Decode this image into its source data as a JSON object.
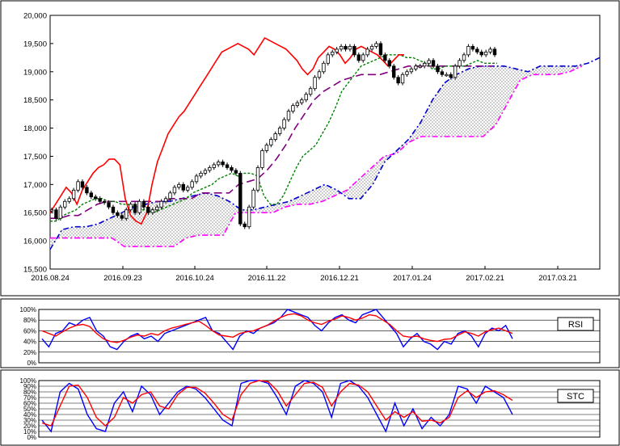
{
  "chart_data": [
    {
      "type": "candlestick",
      "panel": "price",
      "ylim": [
        15500,
        20000
      ],
      "y_ticks": [
        15500,
        16000,
        16500,
        17000,
        17500,
        18000,
        18500,
        19000,
        19500,
        20000
      ],
      "y_tick_labels": [
        "15,500",
        "16,000",
        "16,500",
        "17,000",
        "17,500",
        "18,000",
        "18,500",
        "19,000",
        "19,500",
        "20,000"
      ],
      "x_tick_labels": [
        "2016.08.24",
        "2016.09.23",
        "2016.10.24",
        "2016.11.22",
        "2016.12.21",
        "2017.01.24",
        "2017.02.21",
        "2017.03.21"
      ],
      "grid": true,
      "colors": {
        "chikou": "#ff0000",
        "kijun": "#800080",
        "tenkan": "#008000",
        "senkou_a": "#0000cc",
        "senkou_b": "#ff00ff",
        "cloud": "#c8c8c8"
      },
      "candles": [
        16550,
        16400,
        16600,
        16700,
        16750,
        16900,
        17050,
        16950,
        16850,
        16780,
        16750,
        16700,
        16680,
        16600,
        16500,
        16450,
        16400,
        16550,
        16650,
        16500,
        16700,
        16600,
        16500,
        16550,
        16600,
        16700,
        16750,
        16850,
        16950,
        17000,
        16900,
        16950,
        17050,
        17150,
        17200,
        17250,
        17300,
        17350,
        17400,
        17350,
        17300,
        17250,
        17200,
        16300,
        16250,
        16600,
        16900,
        17300,
        17600,
        17700,
        17800,
        17900,
        18000,
        18150,
        18300,
        18400,
        18450,
        18500,
        18600,
        18700,
        18900,
        19000,
        19150,
        19300,
        19350,
        19400,
        19450,
        19400,
        19450,
        19300,
        19200,
        19300,
        19400,
        19450,
        19500,
        19300,
        19200,
        19100,
        18900,
        18800,
        18950,
        19000,
        19050,
        19100,
        19100,
        19150,
        19200,
        19100,
        19000,
        18950,
        18950,
        18900,
        19100,
        19200,
        19300,
        19450,
        19400,
        19350,
        19300,
        19350,
        19400,
        19300
      ],
      "chikou_span": [
        16500,
        16650,
        16800,
        16950,
        16850,
        16650,
        16900,
        17050,
        17200,
        17300,
        17350,
        17450,
        17450,
        17350,
        16750,
        16450,
        16350,
        16300,
        16500,
        17000,
        17400,
        17650,
        17900,
        18050,
        18200,
        18300,
        18450,
        18600,
        18750,
        18900,
        19050,
        19200,
        19350,
        19400,
        19450,
        19500,
        19450,
        19400,
        19300,
        19450,
        19600,
        19550,
        19500,
        19450,
        19400,
        19300,
        19200,
        19050,
        18950,
        19050,
        19250,
        19350,
        19450,
        19400,
        19300,
        19150,
        19250,
        19400,
        19450,
        19400,
        19350,
        19300,
        19200,
        19100,
        19200,
        19300,
        19300
      ],
      "tenkan": [
        16350,
        16350,
        16450,
        16500,
        16550,
        16650,
        16700,
        16750,
        16750,
        16700,
        16700,
        16650,
        16650,
        16600,
        16550,
        16550,
        16500,
        16550,
        16600,
        16650,
        16700,
        16750,
        16850,
        16900,
        16950,
        17000,
        17100,
        17150,
        17200,
        17150,
        17200,
        17200,
        17150,
        16800,
        16650,
        16650,
        16800,
        17050,
        17300,
        17500,
        17600,
        17700,
        17900,
        18100,
        18350,
        18650,
        18800,
        18950,
        19100,
        19150,
        19200,
        19250,
        19300,
        19300,
        19300,
        19250,
        19250,
        19200,
        19150,
        19050,
        19050,
        19100,
        19100,
        19100,
        19100,
        19150,
        19200,
        19150,
        19150,
        19150
      ],
      "kijun": [
        16400,
        16400,
        16450,
        16450,
        16550,
        16650,
        16700,
        16700,
        16700,
        16700,
        16700,
        16700,
        16700,
        16750,
        16750,
        16750,
        16850,
        16850,
        16850,
        16850,
        17000,
        17050,
        17100,
        17250,
        17450,
        17700,
        18000,
        18250,
        18500,
        18650,
        18750,
        18850,
        18900,
        18950,
        18950,
        18950,
        19000,
        19050,
        19100,
        19100,
        19100,
        19100,
        19100,
        19100,
        19100,
        19100,
        19100,
        19100
      ],
      "senkou_a": [
        15850,
        16200,
        16250,
        16250,
        16300,
        16400,
        16500,
        16600,
        16650,
        16700,
        16700,
        16750,
        16800,
        16850,
        16800,
        16700,
        16550,
        16550,
        16600,
        16650,
        16700,
        16800,
        16900,
        17000,
        16900,
        16750,
        16750,
        17000,
        17400,
        17600,
        17800,
        18100,
        18500,
        18800,
        18950,
        19050,
        19100,
        19100,
        19100,
        19050,
        19000,
        19100,
        19100,
        19100,
        19100,
        19150,
        19250
      ],
      "senkou_b": [
        16050,
        16050,
        16050,
        16050,
        16050,
        16050,
        15900,
        15900,
        15900,
        15900,
        15900,
        16050,
        16100,
        16100,
        16100,
        16500,
        16500,
        16500,
        16500,
        16600,
        16650,
        16650,
        16700,
        16800,
        16900,
        17100,
        17300,
        17500,
        17550,
        17750,
        17850,
        17850,
        17850,
        17850,
        17850,
        17850,
        18050,
        18450,
        18850,
        18950,
        18950,
        18950,
        19000,
        19100
      ]
    },
    {
      "type": "line",
      "panel": "rsi",
      "legend": "RSI",
      "ylim": [
        0,
        100
      ],
      "y_tick_labels": [
        "0%",
        "20%",
        "40%",
        "60%",
        "80%",
        "100%"
      ],
      "series": [
        {
          "color": "#0000ff",
          "values": [
            45,
            30,
            55,
            60,
            75,
            70,
            80,
            85,
            60,
            50,
            30,
            25,
            40,
            50,
            55,
            45,
            50,
            40,
            55,
            60,
            65,
            70,
            75,
            80,
            85,
            60,
            55,
            40,
            25,
            50,
            60,
            55,
            65,
            70,
            75,
            85,
            100,
            95,
            90,
            85,
            70,
            60,
            75,
            85,
            90,
            80,
            75,
            90,
            95,
            100,
            85,
            70,
            55,
            30,
            45,
            55,
            40,
            35,
            25,
            40,
            35,
            55,
            60,
            50,
            30,
            55,
            65,
            60,
            70,
            45
          ]
        },
        {
          "color": "#ff0000",
          "values": [
            60,
            55,
            50,
            58,
            65,
            70,
            72,
            68,
            55,
            45,
            40,
            38,
            42,
            48,
            52,
            50,
            55,
            52,
            60,
            65,
            68,
            72,
            75,
            78,
            70,
            60,
            52,
            50,
            48,
            55,
            58,
            60,
            65,
            70,
            78,
            85,
            90,
            92,
            88,
            80,
            75,
            72,
            78,
            82,
            88,
            85,
            80,
            84,
            90,
            88,
            80,
            72,
            60,
            50,
            48,
            50,
            45,
            42,
            40,
            44,
            45,
            52,
            58,
            55,
            50,
            58,
            62,
            65,
            60,
            55
          ]
        }
      ]
    },
    {
      "type": "line",
      "panel": "stc",
      "legend": "STC",
      "ylim": [
        0,
        100
      ],
      "y_tick_labels": [
        "0%",
        "10%",
        "20%",
        "30%",
        "40%",
        "50%",
        "60%",
        "70%",
        "80%",
        "90%",
        "100%"
      ],
      "series": [
        {
          "color": "#0000ff",
          "values": [
            30,
            10,
            80,
            95,
            85,
            40,
            15,
            10,
            60,
            80,
            45,
            90,
            75,
            40,
            60,
            80,
            90,
            85,
            70,
            50,
            30,
            20,
            95,
            100,
            100,
            95,
            70,
            40,
            90,
            100,
            95,
            80,
            35,
            95,
            100,
            90,
            70,
            40,
            10,
            60,
            20,
            50,
            15,
            35,
            20,
            40,
            90,
            85,
            60,
            90,
            80,
            70,
            40
          ]
        },
        {
          "color": "#ff0000",
          "values": [
            25,
            20,
            55,
            90,
            92,
            70,
            35,
            20,
            35,
            70,
            60,
            75,
            80,
            55,
            50,
            75,
            88,
            88,
            78,
            60,
            40,
            30,
            75,
            95,
            100,
            98,
            82,
            55,
            75,
            95,
            97,
            88,
            55,
            80,
            95,
            92,
            80,
            55,
            30,
            45,
            35,
            45,
            28,
            30,
            25,
            35,
            70,
            82,
            70,
            80,
            82,
            75,
            65
          ]
        }
      ]
    }
  ],
  "legends": {
    "rsi": "RSI",
    "stc": "STC"
  }
}
